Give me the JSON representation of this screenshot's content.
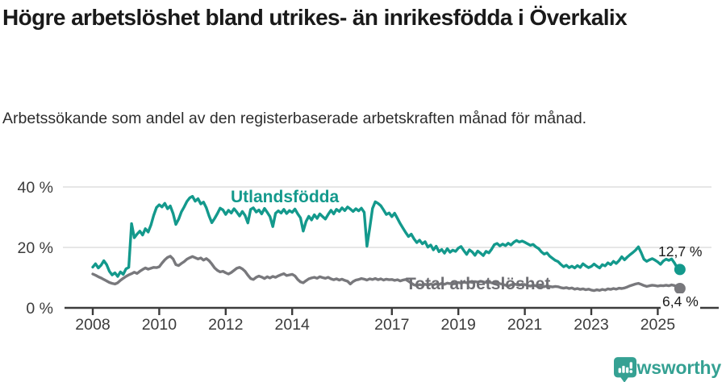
{
  "header": {
    "title": "Högre arbetslöshet bland utrikes- än inrikesfödda i Överkalix",
    "subtitle": "Arbetssökande som andel av den registerbaserade arbetskraften månad för månad."
  },
  "branding": {
    "logo_text": "Newsworthy",
    "logo_icon": "bar-chart-speech-bubble-icon",
    "brand_color": "#35a193"
  },
  "chart_data": {
    "type": "line",
    "unit": "%",
    "grid": "horizontal",
    "legend_position": "inline-labels",
    "x_start_year": 2008,
    "x_step_months": 1,
    "points": 213,
    "ylim": [
      0,
      45
    ],
    "y_ticks": {
      "values": [
        0,
        20,
        40
      ],
      "labels": [
        "0 %",
        "20 %",
        "40 %"
      ]
    },
    "x_ticks": {
      "values": [
        2008,
        2010,
        2012,
        2014,
        2017,
        2019,
        2021,
        2023,
        2025
      ],
      "labels": [
        "2008",
        "2010",
        "2012",
        "2014",
        "2017",
        "2019",
        "2021",
        "2023",
        "2025"
      ]
    },
    "series": [
      {
        "name": "Utlandsfödda",
        "color": "#13998c",
        "end_value": 12.7,
        "end_label": "12,7 %",
        "values": [
          13.5,
          14.6,
          13.2,
          14.1,
          15.6,
          14.3,
          12.1,
          10.9,
          11.6,
          10.4,
          11.9,
          11.1,
          12.9,
          13.4,
          27.9,
          23.2,
          24.4,
          25.4,
          24.1,
          26.2,
          25.1,
          27.4,
          30.6,
          33.2,
          34.1,
          33.4,
          34.6,
          32.8,
          33.7,
          31.2,
          27.6,
          29.3,
          31.8,
          33.4,
          35.2,
          36.4,
          36.9,
          35.3,
          36.1,
          34.4,
          35.0,
          33.1,
          30.4,
          28.2,
          29.6,
          31.2,
          33.0,
          32.4,
          30.9,
          32.3,
          31.4,
          32.8,
          31.7,
          30.4,
          31.9,
          30.6,
          28.1,
          32.6,
          33.1,
          31.7,
          32.4,
          31.1,
          32.9,
          31.6,
          30.2,
          26.9,
          31.3,
          32.1,
          31.4,
          32.6,
          31.2,
          32.2,
          31.6,
          32.7,
          31.1,
          29.8,
          25.4,
          28.6,
          30.3,
          29.1,
          30.8,
          29.6,
          31.1,
          30.2,
          29.4,
          30.9,
          32.3,
          31.1,
          32.6,
          31.9,
          33.1,
          32.2,
          33.4,
          32.7,
          31.9,
          32.8,
          32.1,
          33.0,
          31.6,
          20.4,
          26.3,
          32.9,
          35.1,
          34.6,
          33.8,
          32.4,
          30.9,
          31.4,
          30.2,
          31.3,
          29.6,
          27.9,
          26.4,
          24.9,
          23.6,
          24.4,
          22.8,
          21.6,
          22.4,
          21.2,
          21.9,
          20.1,
          20.8,
          19.2,
          20.4,
          18.6,
          19.3,
          18.1,
          19.6,
          18.4,
          19.1,
          18.7,
          19.8,
          20.3,
          18.9,
          17.7,
          19.2,
          18.5,
          17.4,
          18.8,
          18.1,
          17.3,
          18.7,
          18.2,
          19.4,
          20.9,
          21.3,
          20.5,
          21.1,
          20.6,
          21.4,
          20.8,
          21.7,
          22.3,
          21.8,
          22.1,
          21.7,
          21.2,
          20.7,
          21.0,
          20.2,
          19.6,
          18.5,
          17.8,
          18.2,
          17.1,
          16.4,
          15.7,
          15.3,
          14.4,
          13.6,
          14.1,
          13.3,
          13.8,
          13.2,
          14.0,
          13.4,
          14.6,
          13.9,
          13.3,
          13.7,
          14.5,
          13.8,
          13.2,
          14.3,
          13.9,
          14.9,
          14.3,
          15.4,
          14.7,
          15.6,
          16.9,
          15.9,
          16.8,
          17.6,
          18.3,
          19.1,
          20.2,
          18.3,
          16.1,
          15.4,
          15.9,
          16.3,
          15.8,
          15.2,
          14.4,
          15.5,
          16.1,
          15.7,
          16.2,
          14.9,
          13.3,
          12.7
        ]
      },
      {
        "name": "Total arbetslöshet",
        "color": "#78787c",
        "end_value": 6.4,
        "end_label": "6,4 %",
        "values": [
          11.2,
          10.8,
          10.3,
          9.9,
          9.4,
          8.9,
          8.4,
          8.1,
          7.9,
          8.3,
          9.1,
          9.8,
          10.4,
          10.9,
          11.3,
          11.8,
          11.4,
          12.1,
          12.7,
          13.2,
          12.8,
          13.1,
          13.4,
          13.3,
          13.6,
          14.8,
          15.9,
          16.7,
          17.1,
          16.2,
          14.3,
          14.0,
          14.7,
          15.3,
          16.1,
          16.6,
          17.0,
          16.6,
          16.2,
          16.5,
          15.8,
          16.3,
          15.6,
          14.5,
          13.2,
          12.4,
          11.9,
          12.1,
          11.6,
          11.2,
          11.7,
          12.4,
          13.1,
          13.4,
          12.9,
          12.1,
          10.8,
          9.7,
          9.4,
          10.1,
          10.5,
          10.2,
          9.7,
          10.3,
          9.9,
          10.4,
          10.1,
          10.6,
          11.0,
          11.3,
          10.7,
          10.9,
          11.1,
          10.6,
          9.4,
          8.6,
          8.3,
          9.0,
          9.6,
          9.9,
          10.1,
          9.8,
          10.3,
          10.0,
          9.8,
          10.1,
          9.6,
          9.3,
          9.6,
          9.2,
          9.5,
          9.1,
          8.8,
          7.9,
          8.7,
          9.2,
          9.4,
          9.7,
          9.5,
          9.2,
          9.6,
          9.4,
          9.7,
          9.3,
          9.6,
          9.2,
          9.5,
          9.3,
          9.4,
          9.1,
          9.3,
          8.9,
          9.2,
          9.4,
          8.8,
          8.2,
          7.6,
          7.4,
          7.7,
          7.5,
          7.8,
          7.5,
          7.9,
          7.6,
          8.0,
          7.7,
          8.1,
          7.8,
          8.2,
          8.0,
          8.3,
          8.1,
          8.4,
          8.2,
          8.5,
          8.3,
          8.6,
          8.4,
          8.7,
          8.5,
          8.8,
          8.6,
          8.4,
          8.5,
          8.3,
          8.1,
          8.4,
          8.0,
          7.8,
          7.5,
          7.2,
          7.6,
          7.9,
          7.7,
          7.5,
          7.8,
          7.7,
          7.4,
          7.2,
          7.5,
          7.3,
          7.0,
          7.2,
          7.0,
          7.3,
          7.1,
          6.9,
          7.1,
          7.0,
          6.7,
          6.5,
          6.7,
          6.4,
          6.6,
          6.2,
          6.4,
          6.1,
          6.3,
          6.0,
          6.2,
          5.9,
          5.7,
          6.0,
          5.8,
          6.1,
          5.9,
          6.3,
          6.1,
          6.4,
          6.2,
          6.5,
          6.4,
          6.6,
          6.9,
          7.3,
          7.6,
          7.9,
          8.1,
          7.8,
          7.4,
          7.1,
          7.3,
          7.5,
          7.4,
          7.2,
          7.4,
          7.3,
          7.5,
          7.3,
          7.6,
          7.4,
          6.9,
          6.4
        ]
      }
    ],
    "style": {
      "grid_color": "#dedede",
      "axis_color": "#3c3c3c",
      "tick_label_color": "#3c3c3c"
    }
  }
}
